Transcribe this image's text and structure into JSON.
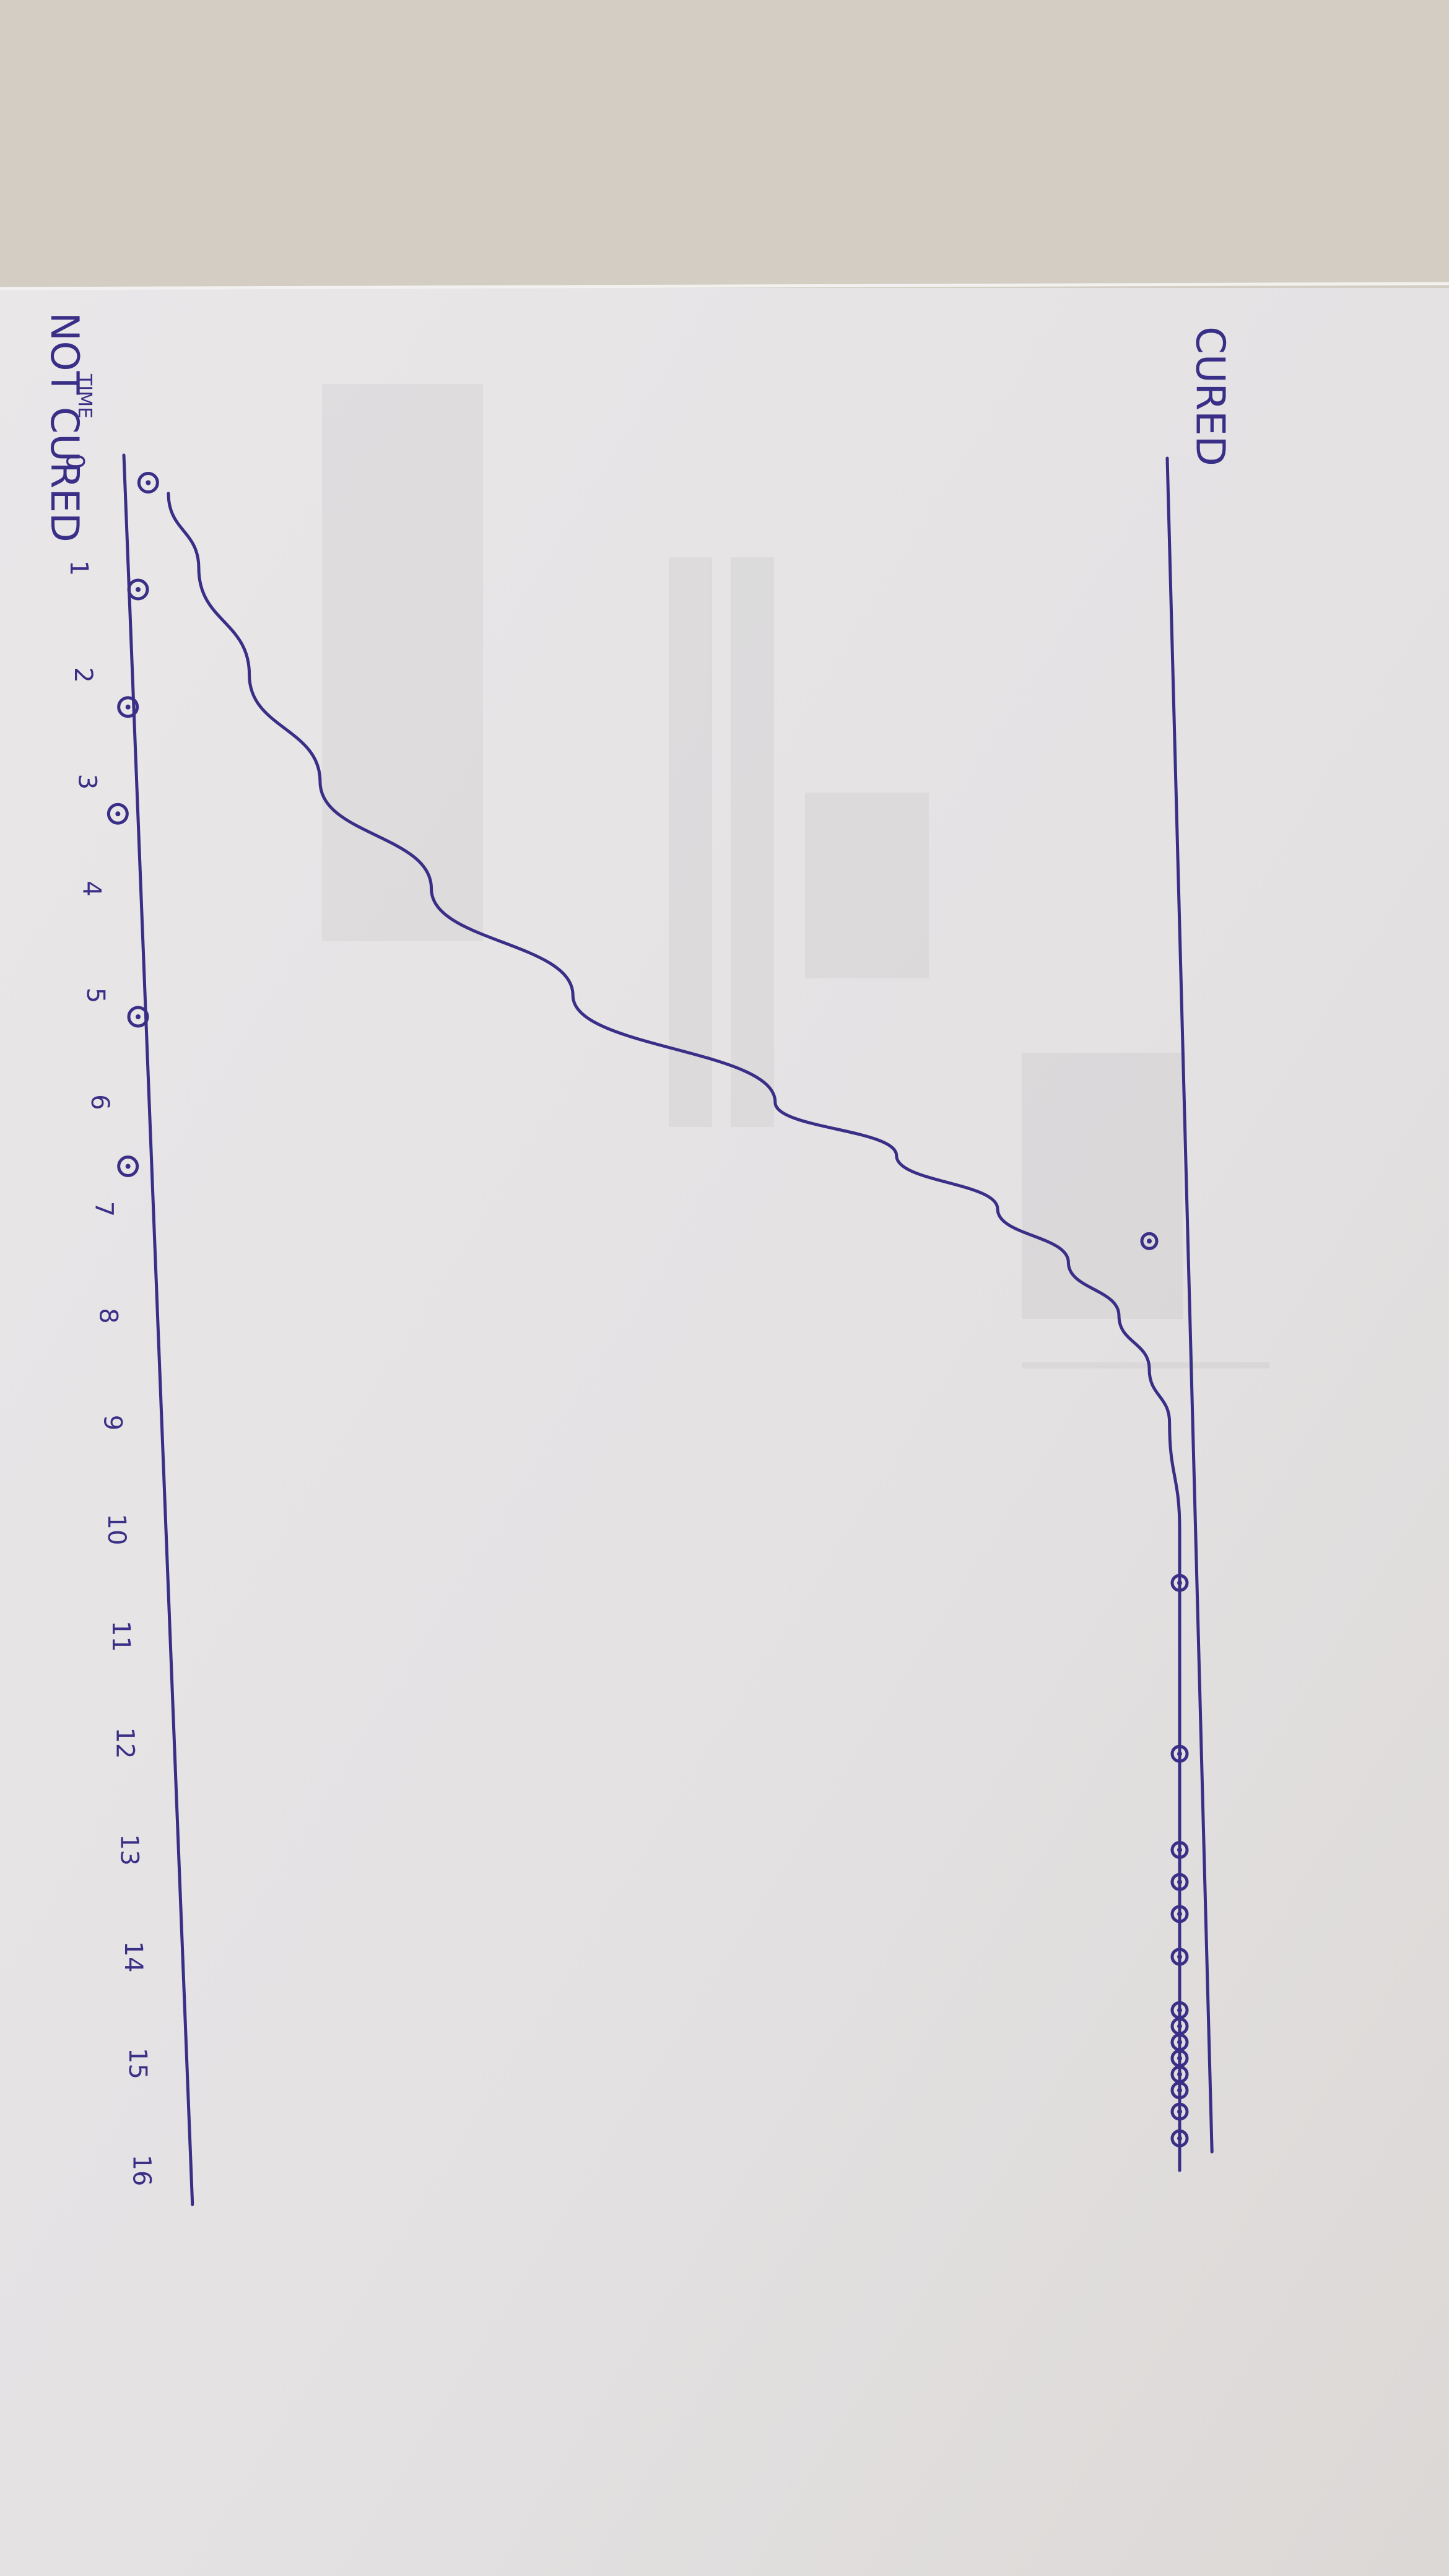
{
  "chart_data": {
    "type": "line",
    "title": "",
    "xlabel": "TIME",
    "ylabel": "",
    "x_ticks": [
      0,
      1,
      2,
      3,
      4,
      5,
      6,
      7,
      8,
      9,
      10,
      11,
      12,
      13,
      14,
      15,
      16
    ],
    "xlim": [
      0,
      16
    ],
    "ylim": [
      0,
      1
    ],
    "y_levels": [
      {
        "label": "NOT CURED",
        "value": 0
      },
      {
        "label": "CURED",
        "value": 1
      }
    ],
    "grid": false,
    "legend": "none",
    "series": [
      {
        "kind": "curve",
        "x": [
          0.3,
          1,
          2,
          3,
          4,
          5,
          6,
          6.5,
          7,
          7.5,
          8,
          8.5,
          9,
          10,
          11,
          12,
          13,
          14,
          15,
          16
        ],
        "y": [
          0.0,
          0.03,
          0.08,
          0.15,
          0.26,
          0.4,
          0.6,
          0.72,
          0.82,
          0.89,
          0.94,
          0.97,
          0.99,
          1.0,
          1.0,
          1.0,
          1.0,
          1.0,
          1.0,
          1.0
        ]
      },
      {
        "kind": "points",
        "x": [
          0.2,
          1.2,
          2.3,
          3.3,
          5.2,
          6.6,
          7.3,
          10.5,
          12.1,
          13.0,
          13.3,
          13.6,
          14.0,
          14.5,
          14.65,
          14.8,
          14.95,
          15.1,
          15.25,
          15.45,
          15.7
        ],
        "y": [
          -0.02,
          -0.03,
          -0.04,
          -0.05,
          -0.03,
          -0.04,
          0.97,
          1.0,
          1.0,
          1.0,
          1.0,
          1.0,
          1.0,
          1.0,
          1.0,
          1.0,
          1.0,
          1.0,
          1.0,
          1.0,
          1.0
        ]
      }
    ]
  },
  "colors": {
    "ink": "#3a2f86",
    "paper": "#e7e5e4",
    "table": "#d6d0c6"
  }
}
